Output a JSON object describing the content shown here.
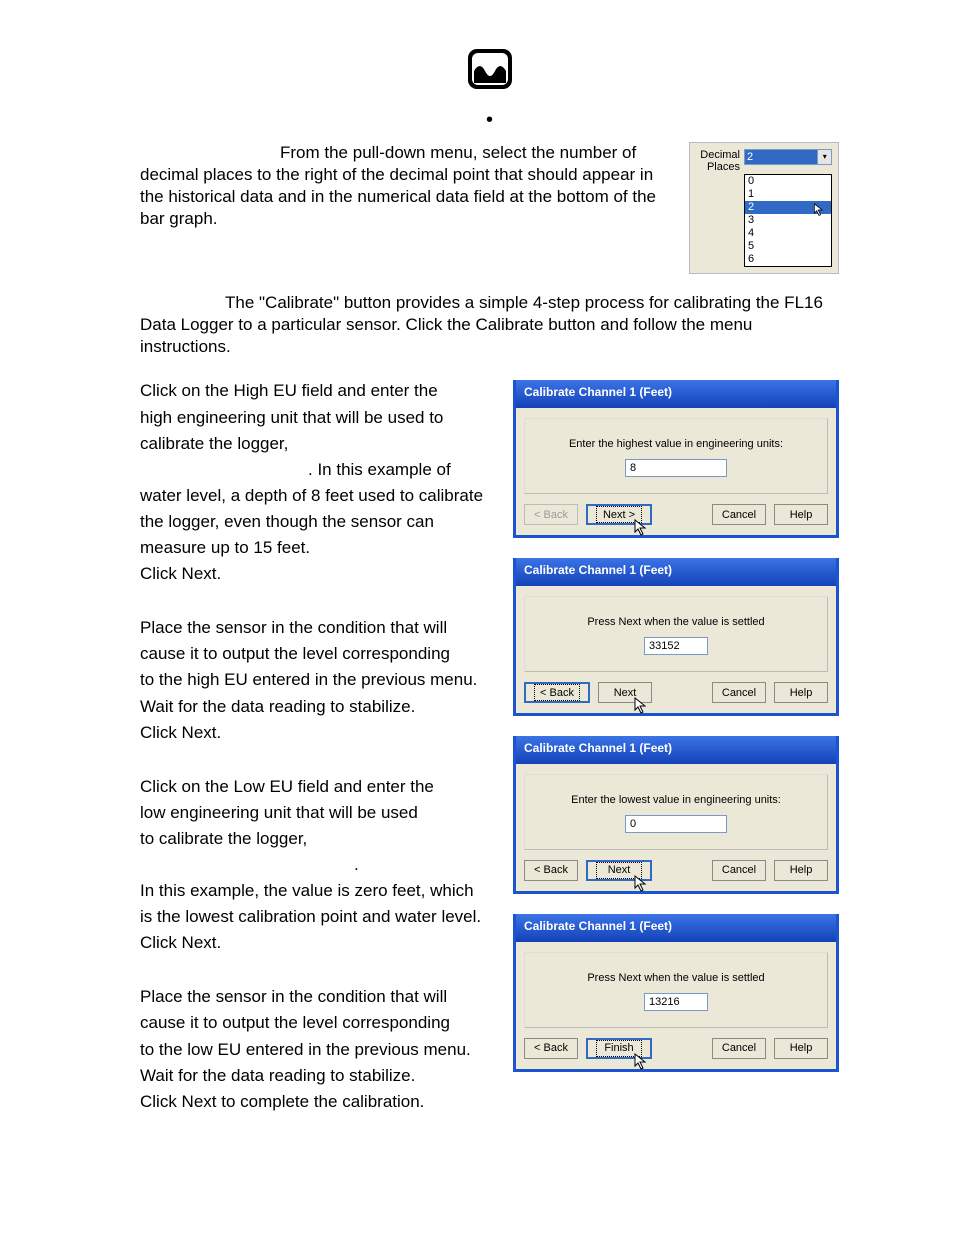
{
  "intro": {
    "decimal_para": "From the pull-down menu, select the number of decimal places to the right of the decimal point that should appear in the historical data and in the numerical data field at the bottom of the bar graph."
  },
  "decimal_widget": {
    "label": "Decimal Places",
    "selected": "2",
    "options": [
      "0",
      "1",
      "2",
      "3",
      "4",
      "5",
      "6"
    ]
  },
  "calibrate_intro": "The \"Calibrate\" button provides a simple 4-step process for calibrating the FL16 Data Logger to a particular sensor.  Click the Calibrate button and follow the menu instructions.",
  "steps": {
    "s1": [
      "Click on the High EU field and enter the",
      "high engineering unit that will be used to",
      "calibrate the logger,",
      ". In this example of",
      "water level, a depth of 8 feet used to calibrate",
      "the logger, even though the sensor can",
      "measure up to 15 feet.",
      "Click Next."
    ],
    "s2": [
      "Place the sensor in the condition that will",
      "cause it to output the level corresponding",
      "to the high EU entered in the previous menu.",
      "Wait for the data reading to stabilize.",
      "Click Next."
    ],
    "s3": [
      "Click on the Low EU field and enter the",
      "low engineering unit that will be used",
      "to calibrate the logger,",
      ".",
      "In this example, the value is zero feet, which",
      "is the lowest calibration point and water level.",
      "Click Next."
    ],
    "s4": [
      "Place the sensor in the condition that will",
      "cause it to output the level corresponding",
      "to the low EU entered in the previous menu.",
      "Wait for the data reading to stabilize.",
      "Click Next to complete the calibration."
    ]
  },
  "dialogs": {
    "title": "Calibrate Channel 1 (Feet)",
    "d1": {
      "prompt": "Enter the highest value in engineering units:",
      "value": "8",
      "input_width": 92,
      "buttons": {
        "back": "< Back",
        "back_disabled": true,
        "next": "Next >",
        "is_finish": false,
        "cancel": "Cancel",
        "help": "Help"
      },
      "default_btn": "next",
      "cursor_on": "next"
    },
    "d2": {
      "prompt": "Press Next when the value is settled",
      "value": "33152",
      "input_width": 54,
      "buttons": {
        "back": "< Back",
        "back_disabled": false,
        "next": "Next",
        "is_finish": false,
        "cancel": "Cancel",
        "help": "Help"
      },
      "default_btn": "back",
      "cursor_on": "next"
    },
    "d3": {
      "prompt": "Enter the lowest value in engineering units:",
      "value": "0",
      "input_width": 92,
      "buttons": {
        "back": "< Back",
        "back_disabled": false,
        "next": "Next",
        "is_finish": false,
        "cancel": "Cancel",
        "help": "Help"
      },
      "default_btn": "next",
      "cursor_on": "next"
    },
    "d4": {
      "prompt": "Press Next when the value is settled",
      "value": "13216",
      "input_width": 54,
      "buttons": {
        "back": "< Back",
        "back_disabled": false,
        "next": "Finish",
        "is_finish": true,
        "cancel": "Cancel",
        "help": "Help"
      },
      "default_btn": "next",
      "cursor_on": "next"
    }
  }
}
